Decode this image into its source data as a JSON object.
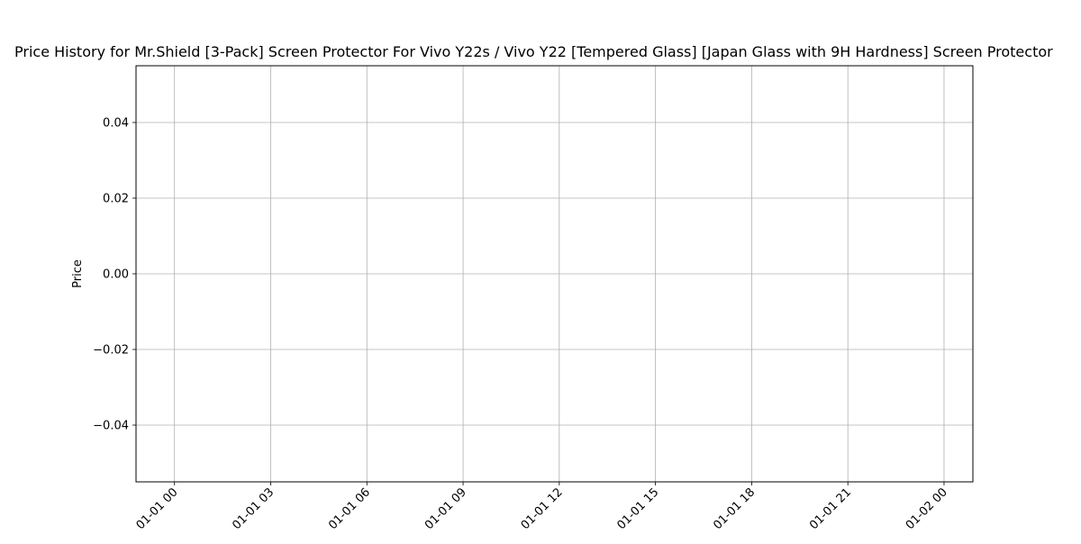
{
  "chart_data": {
    "type": "line",
    "title": "Price History for Mr.Shield [3-Pack] Screen Protector For Vivo Y22s / Vivo Y22 [Tempered Glass] [Japan Glass with 9H Hardness] Screen Protector",
    "xlabel": "",
    "ylabel": "Price",
    "x_ticks": [
      "01-01 00",
      "01-01 03",
      "01-01 06",
      "01-01 09",
      "01-01 12",
      "01-01 15",
      "01-01 18",
      "01-01 21",
      "01-02 00"
    ],
    "y_ticks": [
      "0.04",
      "0.02",
      "0.00",
      "−0.02",
      "−0.04"
    ],
    "y_tick_values": [
      0.04,
      0.02,
      0.0,
      -0.02,
      -0.04
    ],
    "ylim": [
      -0.055,
      0.055
    ],
    "xlim_hours": [
      -1.2,
      24.9
    ],
    "x_tick_hours": [
      0,
      3,
      6,
      9,
      12,
      15,
      18,
      21,
      24
    ],
    "grid": true,
    "series": [
      {
        "values": []
      }
    ]
  }
}
